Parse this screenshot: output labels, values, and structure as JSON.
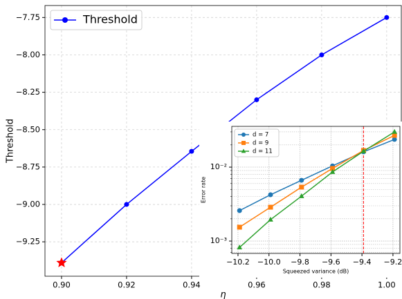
{
  "chart_data": [
    {
      "type": "line",
      "xlabel": "η",
      "ylabel": "Threshold",
      "x": [
        0.9,
        0.92,
        0.94,
        0.96,
        0.98,
        1.0
      ],
      "series": [
        {
          "name": "Threshold",
          "color": "#0000ff",
          "marker": "o",
          "values": [
            -9.39,
            -9.0,
            -8.645,
            -8.3,
            -8.0,
            -7.75
          ]
        }
      ],
      "highlight": {
        "x": 0.9,
        "y": -9.39,
        "color": "#ff0000",
        "marker": "*"
      },
      "xlim": [
        0.8949,
        1.0045
      ],
      "ylim": [
        -9.48,
        -7.67
      ],
      "xticks": [
        {
          "value": 0.9,
          "label": "0.90"
        },
        {
          "value": 0.92,
          "label": "0.92"
        },
        {
          "value": 0.94,
          "label": "0.94"
        },
        {
          "value": 0.96,
          "label": "0.96"
        },
        {
          "value": 0.98,
          "label": "0.98"
        },
        {
          "value": 1.0,
          "label": "1.00"
        }
      ],
      "yticks": [
        {
          "value": -9.25,
          "label": "−9.25"
        },
        {
          "value": -9.0,
          "label": "−9.00"
        },
        {
          "value": -8.75,
          "label": "−8.75"
        },
        {
          "value": -8.5,
          "label": "−8.50"
        },
        {
          "value": -8.25,
          "label": "−8.25"
        },
        {
          "value": -8.0,
          "label": "−8.00"
        },
        {
          "value": -7.75,
          "label": "−7.75"
        }
      ],
      "grid": true,
      "legend": "upper left"
    },
    {
      "type": "line",
      "xlabel": "Squeezed variance (dB)",
      "ylabel": "Error rate",
      "log_y": true,
      "x": [
        -10.19,
        -9.99,
        -9.79,
        -9.59,
        -9.39,
        -9.19
      ],
      "series": [
        {
          "name": "d = 7",
          "color": "#1f77b4",
          "marker": "o",
          "values": [
            0.00258,
            0.00423,
            0.00664,
            0.0104,
            0.0161,
            0.0237
          ]
        },
        {
          "name": "d = 9",
          "color": "#ff7f0e",
          "marker": "s",
          "values": [
            0.00154,
            0.00287,
            0.00536,
            0.0096,
            0.0168,
            0.0269
          ]
        },
        {
          "name": "d = 11",
          "color": "#2ca02c",
          "marker": "^",
          "values": [
            0.00082,
            0.00195,
            0.00405,
            0.0086,
            0.0164,
            0.03
          ]
        }
      ],
      "vline": {
        "x": -9.39,
        "color": "#ff0000"
      },
      "xlim": [
        -10.24,
        -9.155
      ],
      "ylim": [
        0.00068,
        0.0356
      ],
      "xticks": [
        {
          "value": -10.2,
          "label": "−10.2"
        },
        {
          "value": -10.0,
          "label": "−10.0"
        },
        {
          "value": -9.8,
          "label": "−9.8"
        },
        {
          "value": -9.6,
          "label": "−9.6"
        },
        {
          "value": -9.4,
          "label": "−9.4"
        },
        {
          "value": -9.2,
          "label": "−9.2"
        }
      ],
      "yticks": [
        {
          "value": 0.001,
          "label": "10⁻³"
        },
        {
          "value": 0.01,
          "label": "10⁻²"
        }
      ],
      "minor_yticks": [
        0.0007,
        0.0008,
        0.0009,
        0.002,
        0.003,
        0.004,
        0.005,
        0.006,
        0.007,
        0.008,
        0.009,
        0.02,
        0.03
      ],
      "grid": true,
      "legend": "upper left"
    }
  ]
}
